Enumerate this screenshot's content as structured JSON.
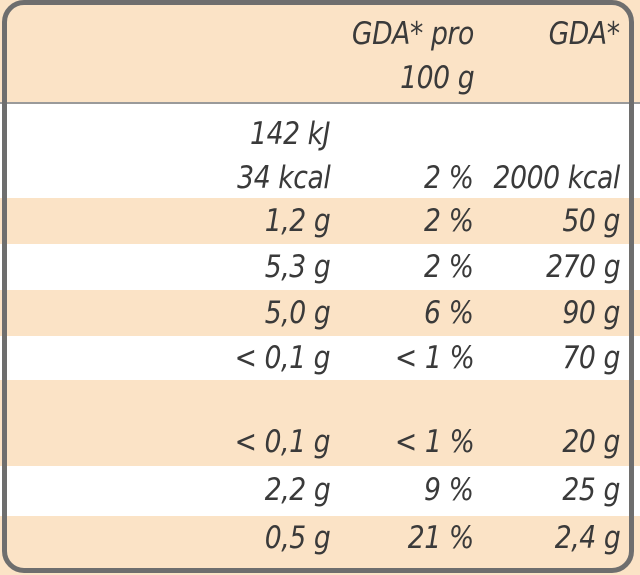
{
  "header": {
    "col2_line1": "GDA* pro",
    "col2_line2": "100 g",
    "col3_line1": "GDA*"
  },
  "colors": {
    "band": "#fbe3c6",
    "white": "#ffffff",
    "border": "#6e6e6e",
    "text": "#3a3a3a"
  },
  "rows": [
    {
      "v1": "142 kJ",
      "v2": "",
      "v3": ""
    },
    {
      "v1": "34 kcal",
      "v2": "2 %",
      "v3": "2000 kcal"
    },
    {
      "v1": "1,2 g",
      "v2": "2 %",
      "v3": "50 g"
    },
    {
      "v1": "5,3 g",
      "v2": "2 %",
      "v3": "270 g"
    },
    {
      "v1": "5,0 g",
      "v2": "6 %",
      "v3": "90 g"
    },
    {
      "v1": "< 0,1 g",
      "v2": "< 1 %",
      "v3": "70 g"
    },
    {
      "v1": "< 0,1 g",
      "v2": "< 1 %",
      "v3": "20 g"
    },
    {
      "v1": "2,2 g",
      "v2": "9 %",
      "v3": "25 g"
    },
    {
      "v1": "0,5 g",
      "v2": "21 %",
      "v3": "2,4 g"
    }
  ]
}
